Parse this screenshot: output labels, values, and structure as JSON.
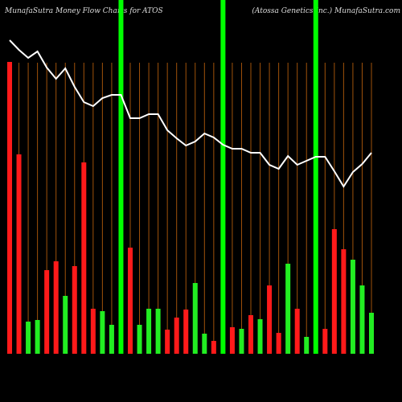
{
  "chart_data": {
    "type": "bar",
    "title": "MunafaSutra  Money Flow  Charts for ATOS",
    "subtitle": "(Atossa Genetics Inc.) MunafaSutra.com",
    "background": "#000000",
    "grid_color": "#a0520a",
    "highlight_color": "#00ff00",
    "line_color": "#ffffff",
    "ylim": [
      0,
      440
    ],
    "values": [
      363,
      248,
      40,
      42,
      104,
      115,
      72,
      109,
      238,
      56,
      53,
      36,
      null,
      132,
      36,
      56,
      56,
      30,
      45,
      55,
      88,
      25,
      16,
      null,
      33,
      31,
      48,
      43,
      85,
      26,
      112,
      56,
      21,
      null,
      31,
      155,
      130,
      117,
      85,
      51
    ],
    "colors": [
      "#ff1a1a",
      "#ff1a1a",
      "#22ee22",
      "#22ee22",
      "#ff1a1a",
      "#ff1a1a",
      "#22ee22",
      "#ff1a1a",
      "#ff1a1a",
      "#ff1a1a",
      "#22ee22",
      "#22ee22",
      "#22ee22",
      "#ff1a1a",
      "#22ee22",
      "#22ee22",
      "#22ee22",
      "#ff1a1a",
      "#ff1a1a",
      "#ff1a1a",
      "#22ee22",
      "#22ee22",
      "#ff1a1a",
      "#22ee22",
      "#ff1a1a",
      "#22ee22",
      "#ff1a1a",
      "#22ee22",
      "#ff1a1a",
      "#ff1a1a",
      "#22ee22",
      "#ff1a1a",
      "#22ee22",
      "#22ee22",
      "#ff1a1a",
      "#ff1a1a",
      "#ff1a1a",
      "#22ee22",
      "#22ee22",
      "#22ee22"
    ],
    "highlights": [
      12,
      23,
      33
    ],
    "line_values": [
      390,
      378,
      368,
      376,
      356,
      342,
      355,
      332,
      313,
      308,
      318,
      322,
      322,
      293,
      293,
      298,
      298,
      278,
      268,
      259,
      264,
      274,
      269,
      260,
      255,
      255,
      250,
      250,
      235,
      230,
      246,
      235,
      240,
      245,
      245,
      227,
      208,
      226,
      236,
      250
    ]
  }
}
